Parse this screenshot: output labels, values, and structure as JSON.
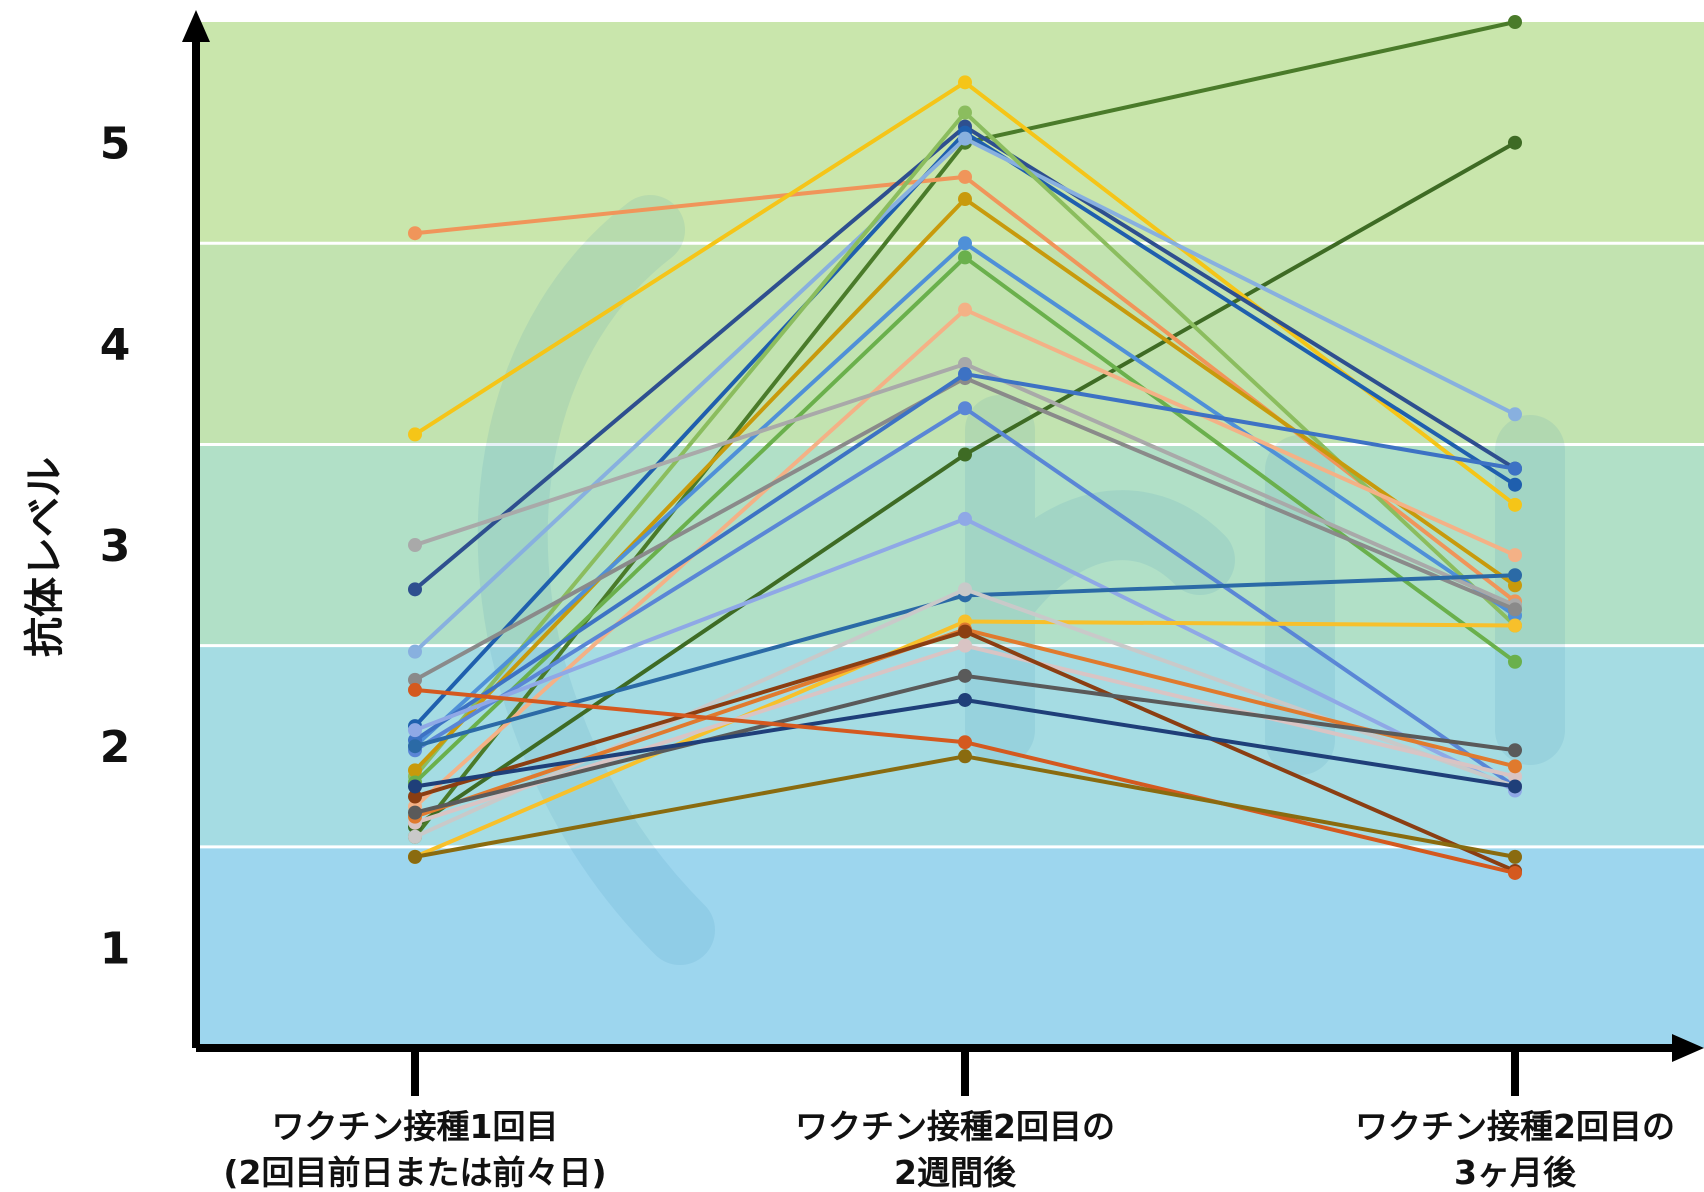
{
  "chart_data": {
    "type": "line",
    "ylabel": "抗体レベル",
    "yticks": [
      "1",
      "2",
      "3",
      "4",
      "5"
    ],
    "ylim": [
      0.5,
      5.6
    ],
    "categories": [
      [
        "ワクチン接種1回目",
        "(2回目前日または前々日)"
      ],
      [
        "ワクチン接種2回目の",
        "2週間後"
      ],
      [
        "ワクチン接種2回目の",
        "3ヶ月後"
      ]
    ],
    "bands": [
      {
        "from": 0.5,
        "to": 1.5,
        "color": "#9dd6ee"
      },
      {
        "from": 1.5,
        "to": 2.5,
        "color": "#a5dce3"
      },
      {
        "from": 2.5,
        "to": 3.5,
        "color": "#b1e0c7"
      },
      {
        "from": 3.5,
        "to": 4.5,
        "color": "#c2e3b0"
      },
      {
        "from": 4.5,
        "to": 5.6,
        "color": "#c9e6ac"
      }
    ],
    "grid": true,
    "series": [
      {
        "color": "#4a7b2a",
        "values": [
          1.55,
          5.0,
          5.6
        ]
      },
      {
        "color": "#3e6b24",
        "values": [
          1.6,
          3.45,
          5.0
        ]
      },
      {
        "color": "#f0955a",
        "values": [
          4.55,
          4.83,
          2.72
        ]
      },
      {
        "color": "#f5c518",
        "values": [
          3.55,
          5.3,
          3.2
        ]
      },
      {
        "color": "#2e4f8f",
        "values": [
          2.78,
          5.08,
          3.38
        ]
      },
      {
        "color": "#1f5fae",
        "values": [
          2.1,
          5.05,
          3.3
        ]
      },
      {
        "color": "#88b0df",
        "values": [
          2.47,
          5.02,
          3.65
        ]
      },
      {
        "color": "#8bbd5e",
        "values": [
          1.85,
          5.15,
          2.6
        ]
      },
      {
        "color": "#c89a0c",
        "values": [
          1.88,
          4.72,
          2.8
        ]
      },
      {
        "color": "#4f90d8",
        "values": [
          2.0,
          4.5,
          2.65
        ]
      },
      {
        "color": "#6ab04c",
        "values": [
          1.82,
          4.43,
          2.42
        ]
      },
      {
        "color": "#f4b186",
        "values": [
          1.7,
          4.17,
          2.95
        ]
      },
      {
        "color": "#a9a9a9",
        "values": [
          3.0,
          3.9,
          2.7
        ]
      },
      {
        "color": "#8a8a8a",
        "values": [
          2.33,
          3.83,
          2.68
        ]
      },
      {
        "color": "#3d72c4",
        "values": [
          2.03,
          3.85,
          3.38
        ]
      },
      {
        "color": "#5a86d6",
        "values": [
          1.98,
          3.68,
          1.8
        ]
      },
      {
        "color": "#8fa8e6",
        "values": [
          2.08,
          3.13,
          1.78
        ]
      },
      {
        "color": "#2b6aa6",
        "values": [
          2.0,
          2.75,
          2.85
        ]
      },
      {
        "color": "#f7c02b",
        "values": [
          1.45,
          2.62,
          2.6
        ]
      },
      {
        "color": "#c9c9c9",
        "values": [
          1.55,
          2.78,
          1.8
        ]
      },
      {
        "color": "#d9c4c4",
        "values": [
          1.62,
          2.5,
          1.85
        ]
      },
      {
        "color": "#e07a2e",
        "values": [
          1.65,
          2.58,
          1.9
        ]
      },
      {
        "color": "#8b3e12",
        "values": [
          1.75,
          2.57,
          1.38
        ]
      },
      {
        "color": "#5a5a5a",
        "values": [
          1.67,
          2.35,
          1.98
        ]
      },
      {
        "color": "#1f3f79",
        "values": [
          1.8,
          2.23,
          1.8
        ]
      },
      {
        "color": "#d4591f",
        "values": [
          2.28,
          2.02,
          1.37
        ]
      },
      {
        "color": "#8a6b0f",
        "values": [
          1.45,
          1.95,
          1.45
        ]
      }
    ]
  }
}
